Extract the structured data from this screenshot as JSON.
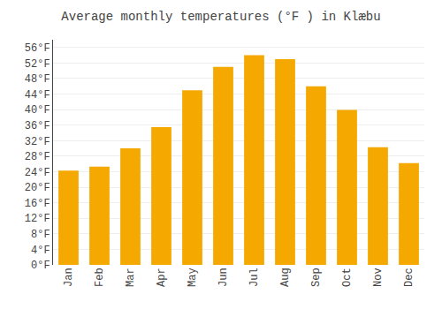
{
  "chart_data": {
    "type": "bar",
    "title": "Average monthly temperatures (°F ) in Klæbu",
    "categories": [
      "Jan",
      "Feb",
      "Mar",
      "Apr",
      "May",
      "Jun",
      "Jul",
      "Aug",
      "Sep",
      "Oct",
      "Nov",
      "Dec"
    ],
    "values": [
      24.3,
      25.3,
      30.0,
      35.5,
      45.0,
      51.0,
      54.0,
      53.0,
      46.0,
      39.9,
      30.3,
      26.2
    ],
    "color": "#F5A800",
    "ylim": [
      0,
      58
    ],
    "yticks": [
      {
        "value": 0,
        "label": "0°F"
      },
      {
        "value": 4,
        "label": "4°F"
      },
      {
        "value": 8,
        "label": "8°F"
      },
      {
        "value": 12,
        "label": "12°F"
      },
      {
        "value": 16,
        "label": "16°F"
      },
      {
        "value": 20,
        "label": "20°F"
      },
      {
        "value": 24,
        "label": "24°F"
      },
      {
        "value": 28,
        "label": "28°F"
      },
      {
        "value": 32,
        "label": "32°F"
      },
      {
        "value": 36,
        "label": "36°F"
      },
      {
        "value": 40,
        "label": "40°F"
      },
      {
        "value": 44,
        "label": "44°F"
      },
      {
        "value": 48,
        "label": "48°F"
      },
      {
        "value": 52,
        "label": "52°F"
      },
      {
        "value": 56,
        "label": "56°F"
      }
    ],
    "grid": true
  }
}
